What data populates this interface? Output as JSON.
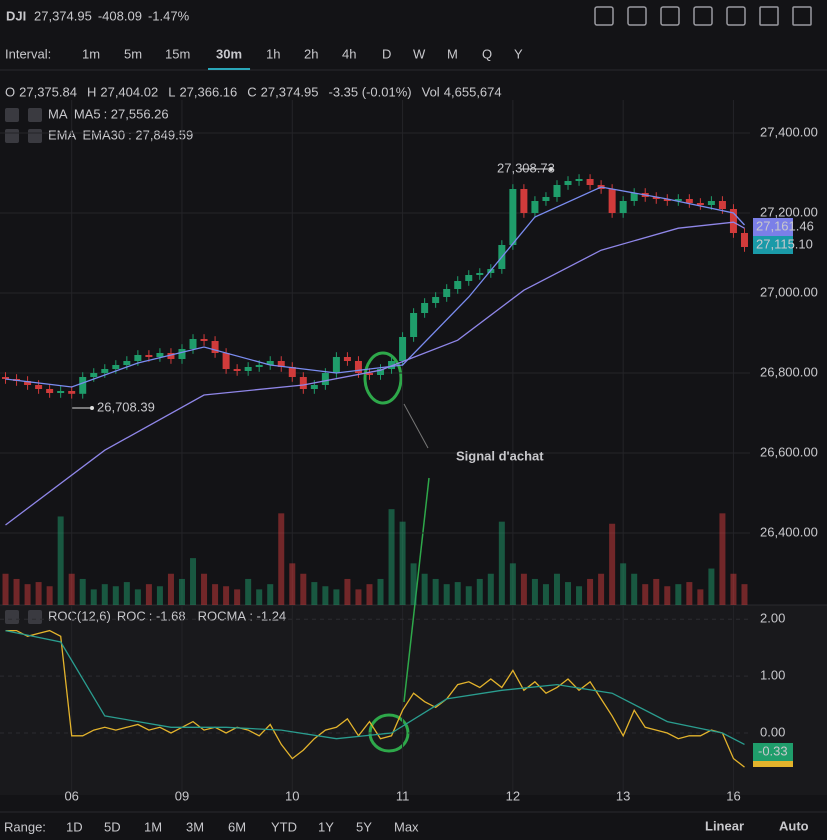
{
  "header": {
    "symbol": "DJI",
    "price": "27,374.95",
    "change": "-408.09",
    "change_pct": "-1.47%"
  },
  "toolbar": {
    "interval_label": "Interval:",
    "intervals": [
      "1m",
      "5m",
      "15m",
      "30m",
      "1h",
      "2h",
      "4h",
      "D",
      "W",
      "M",
      "Q",
      "Y"
    ],
    "active_interval_index": 3
  },
  "ohlc": {
    "o_label": "O",
    "o": "27,375.84",
    "h_label": "H",
    "h": "27,404.02",
    "l_label": "L",
    "l": "27,366.16",
    "c_label": "C",
    "c": "27,374.95",
    "change": "-3.35 (-0.01%)",
    "vol_label": "Vol",
    "vol": "4,655,674"
  },
  "indicators": [
    {
      "toggle": "MA"
    },
    {
      "toggle": "EMA"
    }
  ],
  "chart_data": [
    {
      "type": "candlestick",
      "open": [
        26790,
        26785,
        26780,
        26770,
        26760,
        26750,
        26755,
        26748,
        26790,
        26800,
        26810,
        26820,
        26830,
        26845,
        26840,
        26850,
        26835,
        26860,
        26885,
        26880,
        26850,
        26810,
        26805,
        26815,
        26820,
        26830,
        26815,
        26790,
        26760,
        26770,
        26800,
        26840,
        26830,
        26800,
        26795,
        26810,
        26830,
        26890,
        26950,
        26975,
        26990,
        27010,
        27030,
        27045,
        27050,
        27060,
        27120,
        27260,
        27200,
        27230,
        27240,
        27270,
        27280,
        27285,
        27270,
        27260,
        27200,
        27230,
        27250,
        27240,
        27235,
        27230,
        27235,
        27225,
        27220,
        27230,
        27210,
        27150
      ],
      "high": [
        26802,
        26797,
        26792,
        26782,
        26772,
        26767,
        26767,
        26802,
        26812,
        26822,
        26832,
        26842,
        26857,
        26857,
        26862,
        26862,
        26872,
        26897,
        26897,
        26892,
        26862,
        26822,
        26827,
        26832,
        26842,
        26842,
        26827,
        26802,
        26782,
        26812,
        26852,
        26852,
        26842,
        26812,
        26822,
        26842,
        26902,
        26962,
        26987,
        27002,
        27022,
        27042,
        27057,
        27062,
        27072,
        27132,
        27272,
        27272,
        27242,
        27252,
        27282,
        27292,
        27297,
        27297,
        27282,
        27272,
        27242,
        27262,
        27262,
        27252,
        27247,
        27247,
        27247,
        27237,
        27242,
        27242,
        27222,
        27162
      ],
      "low": [
        26773,
        26768,
        26758,
        26748,
        26738,
        26738,
        26736,
        26736,
        26778,
        26788,
        26798,
        26808,
        26818,
        26828,
        26828,
        26823,
        26823,
        26848,
        26868,
        26838,
        26798,
        26793,
        26793,
        26803,
        26808,
        26803,
        26778,
        26748,
        26748,
        26758,
        26788,
        26818,
        26788,
        26783,
        26783,
        26798,
        26818,
        26878,
        26938,
        26963,
        26978,
        26998,
        27018,
        27033,
        27038,
        27048,
        27108,
        27188,
        27188,
        27218,
        27228,
        27258,
        27268,
        27258,
        27248,
        27188,
        27188,
        27218,
        27228,
        27223,
        27218,
        27218,
        27213,
        27208,
        27208,
        27198,
        27138,
        27103
      ],
      "close": [
        26785,
        26780,
        26770,
        26760,
        26750,
        26755,
        26748,
        26790,
        26800,
        26810,
        26820,
        26830,
        26845,
        26840,
        26850,
        26835,
        26860,
        26885,
        26880,
        26850,
        26810,
        26805,
        26815,
        26820,
        26830,
        26815,
        26790,
        26760,
        26770,
        26800,
        26840,
        26830,
        26800,
        26795,
        26810,
        26830,
        26890,
        26950,
        26975,
        26990,
        27010,
        27030,
        27045,
        27050,
        27060,
        27120,
        27260,
        27200,
        27230,
        27240,
        27270,
        27280,
        27285,
        27270,
        27260,
        27200,
        27230,
        27250,
        27240,
        27235,
        27230,
        27235,
        27225,
        27220,
        27230,
        27210,
        27150,
        27115
      ],
      "volume": [
        3,
        2.5,
        2,
        2.2,
        1.8,
        8.5,
        3,
        2.5,
        1.5,
        2,
        1.8,
        2.2,
        1.5,
        2,
        1.8,
        3,
        2.5,
        4.5,
        3,
        2,
        1.8,
        1.5,
        2.5,
        1.5,
        2,
        8.8,
        4,
        3,
        2.2,
        1.8,
        1.5,
        2.5,
        1.5,
        2,
        2.5,
        9.2,
        8,
        4,
        3,
        2.5,
        2,
        2.2,
        1.8,
        2.5,
        3,
        8,
        4,
        3,
        2.5,
        2,
        3,
        2.2,
        1.8,
        2.5,
        3,
        7.8,
        4,
        3,
        2,
        2.5,
        1.8,
        2,
        2.2,
        1.5,
        3.5,
        8.8,
        3,
        2
      ],
      "volume_ylim": [
        0,
        12
      ],
      "up_color": "#1f9d6b",
      "down_color": "#d13b3b",
      "xlim": [
        -0.5,
        67.5
      ],
      "xticks": [
        {
          "value": 6,
          "label": "06"
        },
        {
          "value": 16,
          "label": "09"
        },
        {
          "value": 26,
          "label": "10"
        },
        {
          "value": 36,
          "label": "11"
        },
        {
          "value": 46,
          "label": "12"
        },
        {
          "value": 56,
          "label": "13"
        },
        {
          "value": 66,
          "label": "16"
        }
      ],
      "ylim": [
        26220,
        27482.5
      ],
      "yticks": [
        {
          "value": 26400,
          "label": "26,400.00"
        },
        {
          "value": 26600,
          "label": "26,600.00"
        },
        {
          "value": 26800,
          "label": "26,800.00"
        },
        {
          "value": 27000,
          "label": "27,000.00"
        },
        {
          "value": 27200,
          "label": "27,200.00"
        },
        {
          "value": 27400,
          "label": "27,400.00"
        }
      ],
      "grid": true,
      "series": [
        {
          "name": "MA5",
          "label": ": 27,556.26",
          "color": "#7a8cf0",
          "x": [
            0,
            6,
            12,
            18,
            24,
            30,
            36,
            42,
            48,
            54,
            60,
            66,
            67
          ],
          "values": [
            26785,
            26765,
            26825,
            26865,
            26820,
            26800,
            26820,
            26990,
            27190,
            27265,
            27235,
            27200,
            27170
          ]
        },
        {
          "name": "EMA30",
          "label": ": 27,849.59",
          "color": "#8f86e8",
          "x": [
            0,
            9,
            18,
            27,
            34,
            41,
            47,
            54,
            61,
            66,
            67
          ],
          "values": [
            26420,
            26607,
            26745,
            26770,
            26807,
            26882,
            27007,
            27107,
            27162,
            27177,
            27162
          ]
        }
      ],
      "annotations": [
        "27,308.73",
        "26,708.39",
        "Signal d'achat"
      ],
      "price_tags": [
        {
          "text": "27,161.46",
          "color": "#7b7fe8"
        },
        {
          "text": "27,115.10",
          "color": "#1a9aa8"
        }
      ]
    },
    {
      "type": "line",
      "title": "ROC(12,6)",
      "xlim": [
        -0.5,
        67.5
      ],
      "ylim": [
        -1.09,
        2.25
      ],
      "yticks": [
        {
          "value": 0,
          "label": "0.00"
        },
        {
          "value": 1,
          "label": "1.00"
        },
        {
          "value": 2,
          "label": "2.00"
        }
      ],
      "series": [
        {
          "name": "ROC",
          "label": ": -1.68",
          "color": "#e3b32c",
          "values": [
            1.8,
            1.8,
            1.7,
            1.75,
            1.8,
            1.7,
            -0.05,
            -0.05,
            0.05,
            0.1,
            0.05,
            0.1,
            0.15,
            0.05,
            0.1,
            0.0,
            0.1,
            0.2,
            0.05,
            0.1,
            0.0,
            0.1,
            0.05,
            -0.05,
            0.15,
            -0.2,
            -0.45,
            -0.3,
            -0.1,
            0.05,
            0.1,
            0.25,
            -0.05,
            0.2,
            -0.1,
            -0.05,
            0.4,
            0.7,
            0.55,
            0.45,
            0.6,
            0.85,
            0.9,
            0.8,
            0.95,
            0.8,
            1.1,
            0.75,
            0.9,
            0.7,
            0.8,
            0.95,
            0.75,
            0.9,
            0.6,
            0.3,
            -0.05,
            0.4,
            0.1,
            0.05,
            0.0,
            -0.1,
            -0.05,
            -0.05,
            0.05,
            0.0,
            -0.45,
            -0.6
          ]
        },
        {
          "name": "ROCMA",
          "label": ": -1.24",
          "color": "#2a9d8f",
          "x": [
            0,
            5,
            9,
            15,
            20,
            25,
            30,
            35,
            40,
            45,
            50,
            55,
            60,
            65,
            67
          ],
          "values": [
            1.8,
            1.6,
            0.3,
            0.1,
            0.1,
            0.05,
            -0.1,
            0.0,
            0.6,
            0.75,
            0.85,
            0.7,
            0.2,
            0.0,
            -0.2
          ]
        }
      ],
      "price_tag": {
        "text": "-0.33",
        "color": "#1f9d6b"
      }
    }
  ],
  "range_bar": {
    "label": "Range:",
    "ranges": [
      "1D",
      "5D",
      "1M",
      "3M",
      "6M",
      "YTD",
      "1Y",
      "5Y",
      "Max"
    ],
    "scale": "Linear",
    "auto": "Auto"
  }
}
